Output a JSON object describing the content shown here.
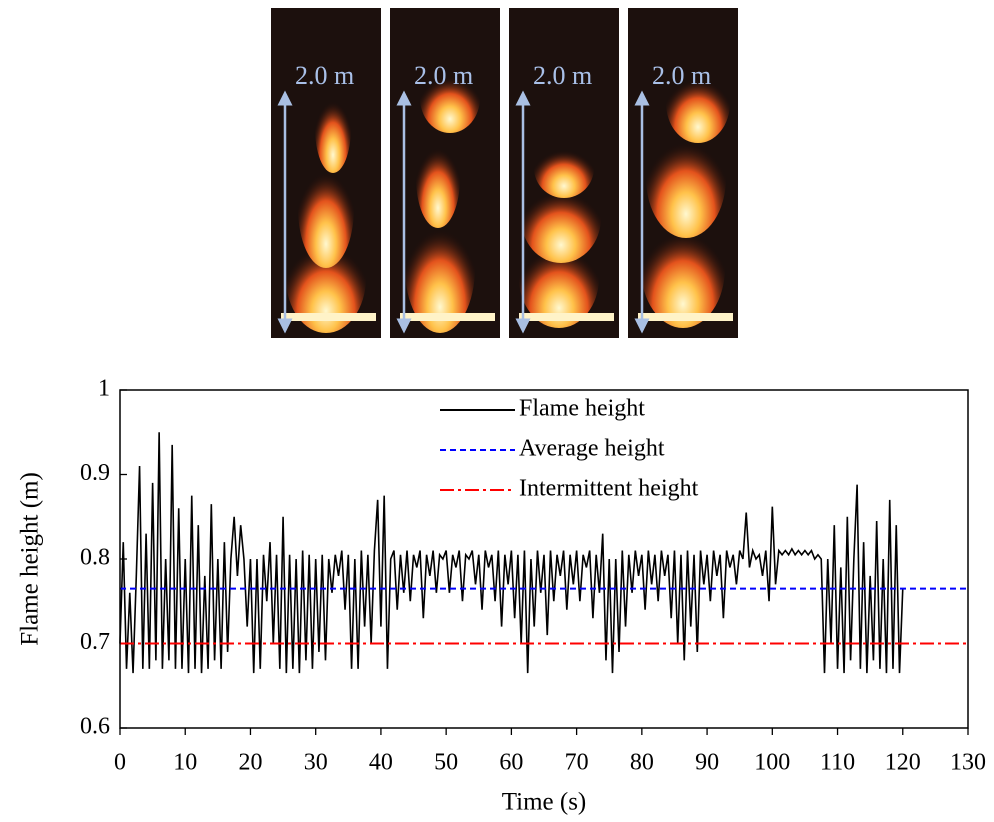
{
  "photos": [
    {
      "label": "2.0 m"
    },
    {
      "label": "2.0 m"
    },
    {
      "label": "2.0 m"
    },
    {
      "label": "2.0 m"
    }
  ],
  "chart_data": {
    "type": "line",
    "xlabel": "Time (s)",
    "ylabel": "Flame height (m)",
    "xlim": [
      0,
      130
    ],
    "xticks": [
      0,
      10,
      20,
      30,
      40,
      50,
      60,
      70,
      80,
      90,
      100,
      110,
      120,
      130
    ],
    "ylim": [
      0.6,
      1
    ],
    "yticks": [
      0.6,
      0.7,
      0.8,
      0.9,
      1
    ],
    "series": [
      {
        "name": "Flame height",
        "color": "#000000",
        "linestyle": "solid",
        "x": [
          0,
          0.5,
          1,
          1.5,
          2,
          2.5,
          3,
          3.5,
          4,
          4.5,
          5,
          5.5,
          6,
          6.5,
          7,
          7.5,
          8,
          8.5,
          9,
          9.5,
          10,
          10.5,
          11,
          11.5,
          12,
          12.5,
          13,
          13.5,
          14,
          14.5,
          15,
          15.5,
          16,
          16.5,
          17,
          17.5,
          18,
          18.5,
          19,
          19.5,
          20,
          20.5,
          21,
          21.5,
          22,
          22.5,
          23,
          23.5,
          24,
          24.5,
          25,
          25.5,
          26,
          26.5,
          27,
          27.5,
          28,
          28.5,
          29,
          29.5,
          30,
          30.5,
          31,
          31.5,
          32,
          32.5,
          33,
          33.5,
          34,
          34.5,
          35,
          35.5,
          36,
          36.5,
          37,
          37.5,
          38,
          38.5,
          39,
          39.5,
          40,
          40.5,
          41,
          41.5,
          42,
          42.5,
          43,
          43.5,
          44,
          44.5,
          45,
          45.5,
          46,
          46.5,
          47,
          47.5,
          48,
          48.5,
          49,
          49.5,
          50,
          50.5,
          51,
          51.5,
          52,
          52.5,
          53,
          53.5,
          54,
          54.5,
          55,
          55.5,
          56,
          56.5,
          57,
          57.5,
          58,
          58.5,
          59,
          59.5,
          60,
          60.5,
          61,
          61.5,
          62,
          62.5,
          63,
          63.5,
          64,
          64.5,
          65,
          65.5,
          66,
          66.5,
          67,
          67.5,
          68,
          68.5,
          69,
          69.5,
          70,
          70.5,
          71,
          71.5,
          72,
          72.5,
          73,
          73.5,
          74,
          74.5,
          75,
          75.5,
          76,
          76.5,
          77,
          77.5,
          78,
          78.5,
          79,
          79.5,
          80,
          80.5,
          81,
          81.5,
          82,
          82.5,
          83,
          83.5,
          84,
          84.5,
          85,
          85.5,
          86,
          86.5,
          87,
          87.5,
          88,
          88.5,
          89,
          89.5,
          90,
          90.5,
          91,
          91.5,
          92,
          92.5,
          93,
          93.5,
          94,
          94.5,
          95,
          95.5,
          96,
          96.5,
          97,
          97.5,
          98,
          98.5,
          99,
          99.5,
          100,
          100.5,
          101,
          101.5,
          102,
          102.5,
          103,
          103.5,
          104,
          104.5,
          105,
          105.5,
          106,
          106.5,
          107,
          107.5,
          108,
          108.5,
          109,
          109.5,
          110,
          110.5,
          111,
          111.5,
          112,
          112.5,
          113,
          113.5,
          114,
          114.5,
          115,
          115.5,
          116,
          116.5,
          117,
          117.5,
          118,
          118.5,
          119,
          119.5,
          120
        ],
        "values": [
          0.7,
          0.82,
          0.67,
          0.76,
          0.665,
          0.78,
          0.91,
          0.67,
          0.83,
          0.67,
          0.89,
          0.68,
          0.95,
          0.67,
          0.8,
          0.68,
          0.935,
          0.67,
          0.86,
          0.67,
          0.8,
          0.665,
          0.875,
          0.67,
          0.84,
          0.665,
          0.78,
          0.67,
          0.865,
          0.68,
          0.8,
          0.67,
          0.82,
          0.69,
          0.8,
          0.85,
          0.78,
          0.84,
          0.8,
          0.72,
          0.8,
          0.665,
          0.8,
          0.67,
          0.805,
          0.75,
          0.82,
          0.7,
          0.805,
          0.67,
          0.85,
          0.665,
          0.805,
          0.67,
          0.8,
          0.665,
          0.81,
          0.68,
          0.805,
          0.67,
          0.8,
          0.69,
          0.805,
          0.68,
          0.8,
          0.76,
          0.805,
          0.78,
          0.81,
          0.74,
          0.805,
          0.67,
          0.8,
          0.67,
          0.81,
          0.72,
          0.805,
          0.7,
          0.81,
          0.87,
          0.72,
          0.875,
          0.67,
          0.8,
          0.81,
          0.74,
          0.805,
          0.76,
          0.81,
          0.75,
          0.805,
          0.79,
          0.81,
          0.73,
          0.805,
          0.78,
          0.81,
          0.76,
          0.805,
          0.8,
          0.81,
          0.76,
          0.805,
          0.79,
          0.81,
          0.75,
          0.805,
          0.8,
          0.81,
          0.77,
          0.805,
          0.74,
          0.81,
          0.79,
          0.805,
          0.75,
          0.81,
          0.72,
          0.805,
          0.77,
          0.81,
          0.73,
          0.805,
          0.7,
          0.81,
          0.665,
          0.8,
          0.72,
          0.81,
          0.76,
          0.805,
          0.71,
          0.81,
          0.75,
          0.805,
          0.78,
          0.81,
          0.74,
          0.805,
          0.77,
          0.81,
          0.75,
          0.805,
          0.79,
          0.81,
          0.73,
          0.805,
          0.76,
          0.83,
          0.68,
          0.8,
          0.665,
          0.8,
          0.69,
          0.81,
          0.72,
          0.805,
          0.76,
          0.81,
          0.78,
          0.805,
          0.74,
          0.81,
          0.77,
          0.805,
          0.75,
          0.81,
          0.78,
          0.805,
          0.73,
          0.81,
          0.7,
          0.805,
          0.68,
          0.81,
          0.72,
          0.805,
          0.69,
          0.81,
          0.77,
          0.805,
          0.75,
          0.81,
          0.78,
          0.805,
          0.73,
          0.81,
          0.79,
          0.805,
          0.77,
          0.81,
          0.8,
          0.855,
          0.79,
          0.81,
          0.8,
          0.805,
          0.78,
          0.81,
          0.75,
          0.862,
          0.77,
          0.81,
          0.805,
          0.81,
          0.805,
          0.812,
          0.805,
          0.81,
          0.805,
          0.81,
          0.805,
          0.81,
          0.8,
          0.805,
          0.8,
          0.665,
          0.8,
          0.7,
          0.84,
          0.67,
          0.79,
          0.665,
          0.85,
          0.68,
          0.8,
          0.888,
          0.67,
          0.82,
          0.665,
          0.78,
          0.68,
          0.845,
          0.67,
          0.8,
          0.665,
          0.87,
          0.67,
          0.84,
          0.665,
          0.765
        ]
      },
      {
        "name": "Average height",
        "color": "#0000ff",
        "linestyle": "dashed",
        "x": [
          0,
          130
        ],
        "values": [
          0.765,
          0.765
        ]
      },
      {
        "name": "Intermittent height",
        "color": "#ff0000",
        "linestyle": "dashdot",
        "x": [
          0,
          130
        ],
        "values": [
          0.7,
          0.7
        ]
      }
    ]
  }
}
